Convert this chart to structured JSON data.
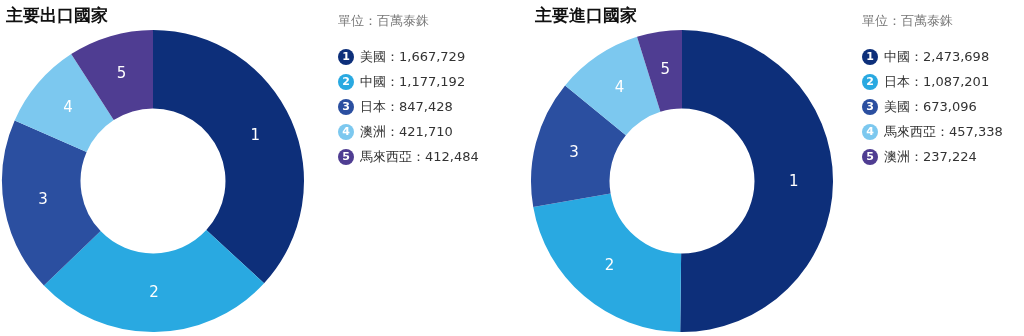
{
  "chart_data": [
    {
      "type": "donut",
      "title": "主要出口國家",
      "subtitle": "單位：百萬泰銖",
      "legend": "right",
      "categories": [
        "美國：1,667,729",
        "中國：1,177,192",
        "日本：847,428",
        "澳洲：421,710",
        "馬來西亞：412,484"
      ],
      "values": [
        1667729,
        1177192,
        847428,
        421710,
        412484
      ],
      "colors": [
        "#0d2f7a",
        "#29a9e1",
        "#2b4fa0",
        "#7cc8ef",
        "#4f3d92"
      ],
      "annotations": [
        {
          "text": "1",
          "x": "美國：1,667,729"
        },
        {
          "text": "2",
          "x": "中國：1,177,192"
        },
        {
          "text": "3",
          "x": "日本：847,428"
        },
        {
          "text": "4",
          "x": "澳洲：421,710"
        },
        {
          "text": "5",
          "x": "馬來西亞：412,484"
        }
      ]
    },
    {
      "type": "donut",
      "title": "主要進口國家",
      "subtitle": "單位：百萬泰銖",
      "legend": "right",
      "categories": [
        "中國：2,473,698",
        "日本：1,087,201",
        "美國：673,096",
        "馬來西亞：457,338",
        "澳洲：237,224"
      ],
      "values": [
        2473698,
        1087201,
        673096,
        457338,
        237224
      ],
      "colors": [
        "#0d2f7a",
        "#29a9e1",
        "#2b4fa0",
        "#7cc8ef",
        "#4f3d92"
      ],
      "annotations": [
        {
          "text": "1",
          "x": "中國：2,473,698"
        },
        {
          "text": "2",
          "x": "日本：1,087,201"
        },
        {
          "text": "3",
          "x": "美國：673,096"
        },
        {
          "text": "4",
          "x": "馬來西亞：457,338"
        },
        {
          "text": "5",
          "x": "澳洲：237,224"
        }
      ]
    }
  ]
}
